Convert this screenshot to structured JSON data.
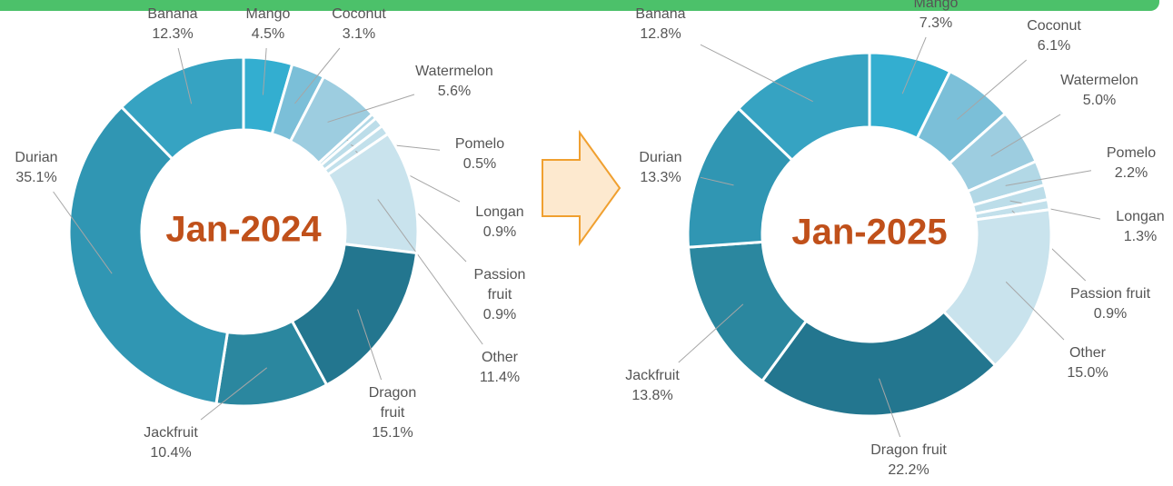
{
  "chart_data": [
    {
      "type": "donut",
      "title": "Jan-2024",
      "categories": [
        "Mango",
        "Coconut",
        "Watermelon",
        "Pomelo",
        "Longan",
        "Passion fruit",
        "Other",
        "Dragon fruit",
        "Jackfruit",
        "Durian",
        "Banana"
      ],
      "values": [
        4.5,
        3.1,
        5.6,
        0.5,
        0.9,
        0.9,
        11.4,
        15.1,
        10.4,
        35.1,
        12.3
      ],
      "value_labels": [
        "4.5%",
        "3.1%",
        "5.6%",
        "0.5%",
        "0.9%",
        "0.9%",
        "11.4%",
        "15.1%",
        "10.4%",
        "35.1%",
        "12.3%"
      ],
      "colors": [
        "#33aed0",
        "#7bbfd8",
        "#9dcde0",
        "#b2d8e6",
        "#bcdde9",
        "#c2e0eb",
        "#c9e3ed",
        "#23768f",
        "#2b879f",
        "#3096b3",
        "#36a3c2"
      ]
    },
    {
      "type": "donut",
      "title": "Jan-2025",
      "categories": [
        "Mango",
        "Coconut",
        "Watermelon",
        "Pomelo",
        "Longan",
        "Passion fruit",
        "Other",
        "Dragon fruit",
        "Jackfruit",
        "Durian",
        "Banana"
      ],
      "values": [
        7.3,
        6.1,
        5.0,
        2.2,
        1.3,
        0.9,
        15.0,
        22.2,
        13.8,
        13.3,
        12.8
      ],
      "value_labels": [
        "7.3%",
        "6.1%",
        "5.0%",
        "2.2%",
        "1.3%",
        "0.9%",
        "15.0%",
        "22.2%",
        "13.8%",
        "13.3%",
        "12.8%"
      ],
      "colors": [
        "#33aed0",
        "#7bbfd8",
        "#9dcde0",
        "#b2d8e6",
        "#bcdde9",
        "#c2e0eb",
        "#c9e3ed",
        "#23768f",
        "#2b879f",
        "#3096b3",
        "#36a3c2"
      ]
    }
  ]
}
